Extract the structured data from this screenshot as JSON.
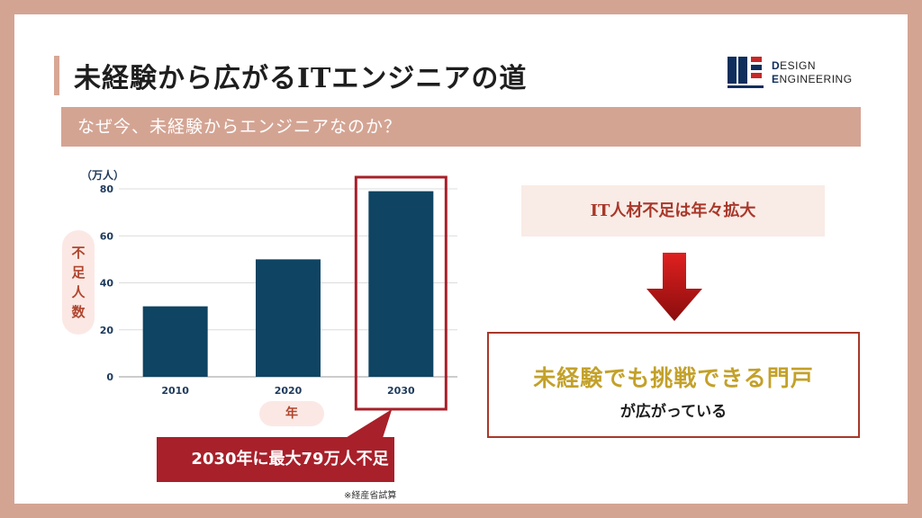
{
  "slide": {
    "title": "未経験から広がるITエンジニアの道",
    "subtitle": "なぜ今、未経験からエンジニアなのか？",
    "logo": {
      "line1_initial": "D",
      "line1_rest": "ESIGN",
      "line2_initial": "E",
      "line2_rest": "NGINEERING",
      "mark_colors": [
        "#0f2e5c",
        "#c62828"
      ]
    }
  },
  "chart_data": {
    "type": "bar",
    "unit_label": "（万人）",
    "ylabel": "不足人数",
    "ylabel_chars": [
      "不",
      "足",
      "人",
      "数"
    ],
    "xlabel": "年",
    "categories": [
      "2010",
      "2020",
      "2030"
    ],
    "values": [
      30,
      50,
      79
    ],
    "ylim": [
      0,
      80
    ],
    "yticks": [
      "0",
      "20",
      "40",
      "60",
      "80"
    ],
    "grid": true,
    "bar_color": "#0f4462",
    "highlight_category": "2030",
    "highlight_color": "#a8202a"
  },
  "callout": {
    "text": "2030年に最大79万人不足",
    "color": "#a8202a"
  },
  "source_note": "※経産省試算",
  "right_panel": {
    "box1_text": "IT人材不足は年々拡大",
    "arrow_icon": "down-arrow-icon",
    "box2_main": "未経験でも挑戦できる門戸",
    "box2_sub": "が広がっている"
  }
}
